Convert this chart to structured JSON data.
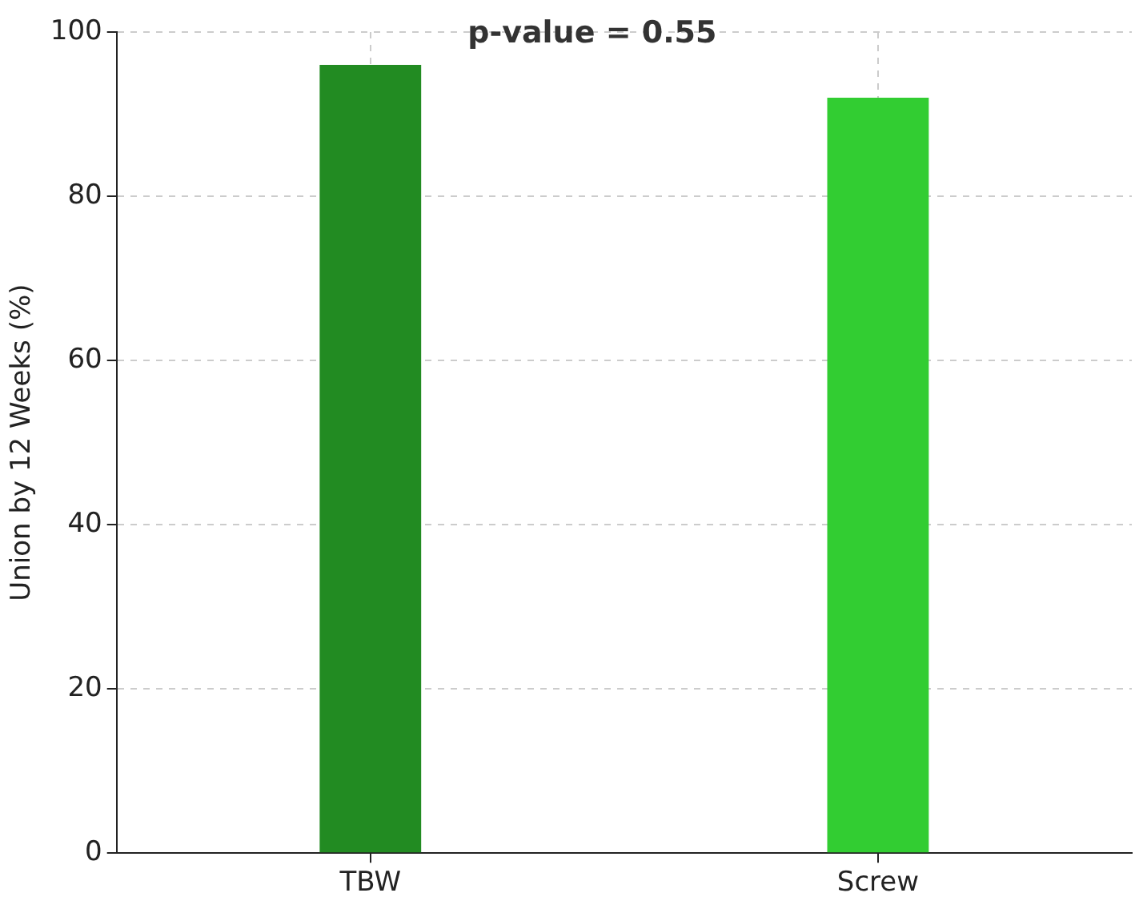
{
  "chart_data": {
    "type": "bar",
    "categories": [
      "TBW",
      "Screw"
    ],
    "values": [
      96,
      92
    ],
    "colors": [
      "#228b22",
      "#32cd32"
    ],
    "ylabel": "Union by 12 Weeks (%)",
    "ylim": [
      0,
      100
    ],
    "yticks": [
      0,
      20,
      40,
      60,
      80,
      100
    ],
    "grid": true,
    "legend": false,
    "annotations": [
      "p-value = 0.55"
    ]
  }
}
